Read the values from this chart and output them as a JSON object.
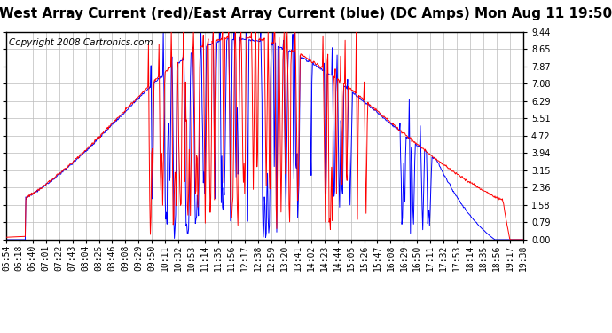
{
  "title": "West Array Current (red)/East Array Current (blue) (DC Amps) Mon Aug 11 19:50",
  "copyright": "Copyright 2008 Cartronics.com",
  "background_color": "#ffffff",
  "plot_bg_color": "#ffffff",
  "grid_color": "#bbbbbb",
  "yticks": [
    0.0,
    0.79,
    1.58,
    2.36,
    3.15,
    3.94,
    4.72,
    5.51,
    6.29,
    7.08,
    7.87,
    8.65,
    9.44
  ],
  "ylim": [
    0,
    9.44
  ],
  "xtick_labels": [
    "05:54",
    "06:18",
    "06:40",
    "07:01",
    "07:22",
    "07:43",
    "08:04",
    "08:25",
    "08:46",
    "09:08",
    "09:29",
    "09:50",
    "10:11",
    "10:32",
    "10:53",
    "11:14",
    "11:35",
    "11:56",
    "12:17",
    "12:38",
    "12:59",
    "13:20",
    "13:41",
    "14:02",
    "14:23",
    "14:44",
    "15:05",
    "15:26",
    "15:47",
    "16:08",
    "16:29",
    "16:50",
    "17:11",
    "17:32",
    "17:53",
    "18:14",
    "18:35",
    "18:56",
    "19:17",
    "19:38"
  ],
  "red_color": "#ff0000",
  "blue_color": "#0000ff",
  "title_fontsize": 11,
  "tick_fontsize": 7,
  "copyright_fontsize": 7.5
}
